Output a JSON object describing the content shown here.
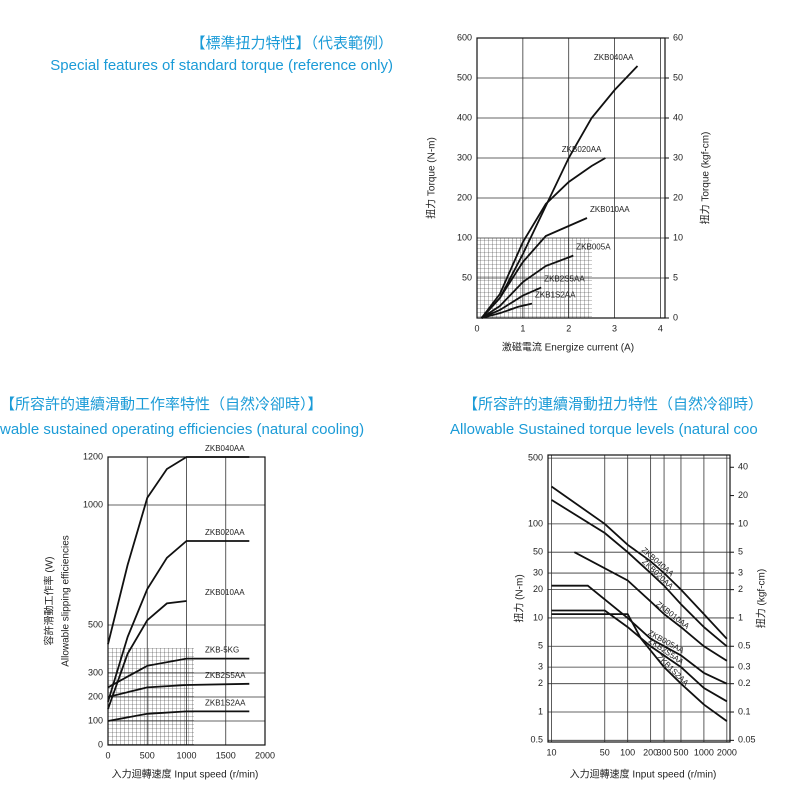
{
  "chart_data": [
    {
      "type": "line",
      "title": "【標準扭力特性】（代表範例）",
      "subtitle": "Special features of standard torque  (reference only)",
      "xlabel": "激磁電流 Energize current (A)",
      "ylabel": [
        "扭力 Torque (N-m)"
      ],
      "y2label": "扭力 Torque (kgf-cm)",
      "xlim": [
        0,
        4.1
      ],
      "xticks": [
        0,
        1,
        2,
        3,
        4
      ],
      "ylim": [
        0,
        600
      ],
      "yticks": [
        50,
        100,
        200,
        300,
        400,
        500,
        600
      ],
      "yscale": "tick-spaced",
      "y2lim": [
        0,
        60
      ],
      "y2ticks": [
        0,
        5,
        10,
        20,
        30,
        40,
        50,
        60
      ],
      "grid": true,
      "series": [
        {
          "name": "ZKB040AA",
          "color": "#111111",
          "x": [
            0.1,
            0.5,
            1,
            1.5,
            2,
            2.5,
            3,
            3.5
          ],
          "values": [
            0,
            25,
            80,
            180,
            300,
            400,
            470,
            530
          ]
        },
        {
          "name": "ZKB020AA",
          "color": "#111111",
          "x": [
            0.1,
            0.5,
            1,
            1.5,
            2,
            2.5,
            2.8
          ],
          "values": [
            0,
            30,
            95,
            185,
            240,
            280,
            300
          ]
        },
        {
          "name": "ZKB010AA",
          "color": "#111111",
          "x": [
            0.1,
            0.5,
            1,
            1.5,
            2,
            2.4
          ],
          "values": [
            0,
            25,
            70,
            105,
            130,
            150
          ]
        },
        {
          "name": "ZKB005A",
          "color": "#111111",
          "x": [
            0.1,
            0.5,
            1,
            1.5,
            2.1
          ],
          "values": [
            0,
            15,
            45,
            65,
            78
          ]
        },
        {
          "name": "ZKB2S5AA",
          "color": "#111111",
          "x": [
            0.1,
            0.5,
            1,
            1.4
          ],
          "values": [
            0,
            10,
            28,
            38
          ]
        },
        {
          "name": "ZKB1S2AA",
          "color": "#111111",
          "x": [
            0.1,
            0.5,
            0.9,
            1.2
          ],
          "values": [
            0,
            6,
            14,
            18
          ]
        }
      ]
    },
    {
      "type": "line",
      "title": "【所容許的連續滑動工作率特性（自然冷卻時）】",
      "subtitle": "wable sustained operating efficiencies (natural cooling)",
      "xlabel": "入力迴轉速度  Input speed (r/min)",
      "ylabel": [
        "容許滑動工作率 (W)",
        "Allowable slipping efficiencies"
      ],
      "xlim": [
        0,
        2000
      ],
      "xticks": [
        0,
        500,
        1000,
        1500,
        2000
      ],
      "ylim": [
        0,
        1200
      ],
      "yticks": [
        0,
        100,
        200,
        300,
        500,
        1000,
        1200
      ],
      "grid": true,
      "series": [
        {
          "name": "ZKB040AA",
          "color": "#111111",
          "x": [
            0,
            250,
            500,
            750,
            1000,
            1800
          ],
          "values": [
            420,
            750,
            1030,
            1150,
            1200,
            1200
          ]
        },
        {
          "name": "ZKB020AA",
          "color": "#111111",
          "x": [
            0,
            250,
            500,
            750,
            1000,
            1800
          ],
          "values": [
            180,
            450,
            650,
            780,
            850,
            850
          ]
        },
        {
          "name": "ZKB010AA",
          "color": "#111111",
          "x": [
            0,
            250,
            500,
            750,
            1000
          ],
          "values": [
            150,
            380,
            520,
            590,
            600
          ]
        },
        {
          "name": "ZKB-5KG",
          "color": "#111111",
          "x": [
            0,
            500,
            1000,
            1800
          ],
          "values": [
            240,
            330,
            360,
            360
          ]
        },
        {
          "name": "ZKB2S5AA",
          "color": "#111111",
          "x": [
            0,
            500,
            1000,
            1800
          ],
          "values": [
            200,
            240,
            250,
            255
          ]
        },
        {
          "name": "ZKB1S2AA",
          "color": "#111111",
          "x": [
            0,
            500,
            1000,
            1800
          ],
          "values": [
            100,
            130,
            140,
            140
          ]
        }
      ]
    },
    {
      "type": "line",
      "title": "【所容許的連續滑動扭力特性（自然冷卻時）",
      "subtitle": "Allowable Sustained torque levels (natural coo",
      "xlabel": "入力迴轉速度  Input speed (r/min)",
      "ylabel": [
        "扭力 (N-m)"
      ],
      "y2label": "扭力 (kgf-cm)",
      "xscale": "log",
      "yscale": "log",
      "xlim": [
        9,
        2200
      ],
      "xticks": [
        10,
        50,
        100,
        200,
        300,
        500,
        1000,
        2000
      ],
      "ylim": [
        0.48,
        540
      ],
      "yticks": [
        0.5,
        1,
        2,
        3,
        5,
        10,
        20,
        30,
        50,
        100,
        500
      ],
      "y2lim": [
        0.048,
        54
      ],
      "y2ticks": [
        0.05,
        0.1,
        0.2,
        0.3,
        0.5,
        1,
        2,
        3,
        5,
        10,
        20,
        40
      ],
      "grid": true,
      "series": [
        {
          "name": "ZKB040AA",
          "color": "#111111",
          "x": [
            10,
            50,
            100,
            200,
            300,
            500,
            1000,
            2000
          ],
          "values": [
            250,
            100,
            60,
            40,
            30,
            20,
            11,
            6
          ]
        },
        {
          "name": "ZKB020AA",
          "color": "#111111",
          "x": [
            10,
            50,
            100,
            200,
            300,
            500,
            1000,
            2000
          ],
          "values": [
            180,
            80,
            50,
            30,
            22,
            14,
            8,
            5
          ]
        },
        {
          "name": "ZKB010AA",
          "color": "#111111",
          "x": [
            20,
            100,
            200,
            300,
            500,
            1000,
            2000
          ],
          "values": [
            50,
            25,
            15,
            11,
            8,
            5,
            3.5
          ]
        },
        {
          "name": "ZKB005AA",
          "color": "#111111",
          "x": [
            10,
            30,
            100,
            200,
            500,
            1000,
            2000
          ],
          "values": [
            22,
            22,
            10,
            6,
            4,
            2.6,
            2
          ]
        },
        {
          "name": "ZKB2S5AA",
          "color": "#111111",
          "x": [
            10,
            50,
            100,
            200,
            500,
            1000,
            2000
          ],
          "values": [
            12,
            12,
            8,
            5,
            3,
            1.8,
            1.3
          ]
        },
        {
          "name": "ZKB1S2AA",
          "color": "#111111",
          "x": [
            10,
            100,
            150,
            300,
            500,
            1000,
            2000
          ],
          "values": [
            11,
            11,
            6,
            3,
            2,
            1.2,
            0.8
          ]
        }
      ]
    }
  ]
}
